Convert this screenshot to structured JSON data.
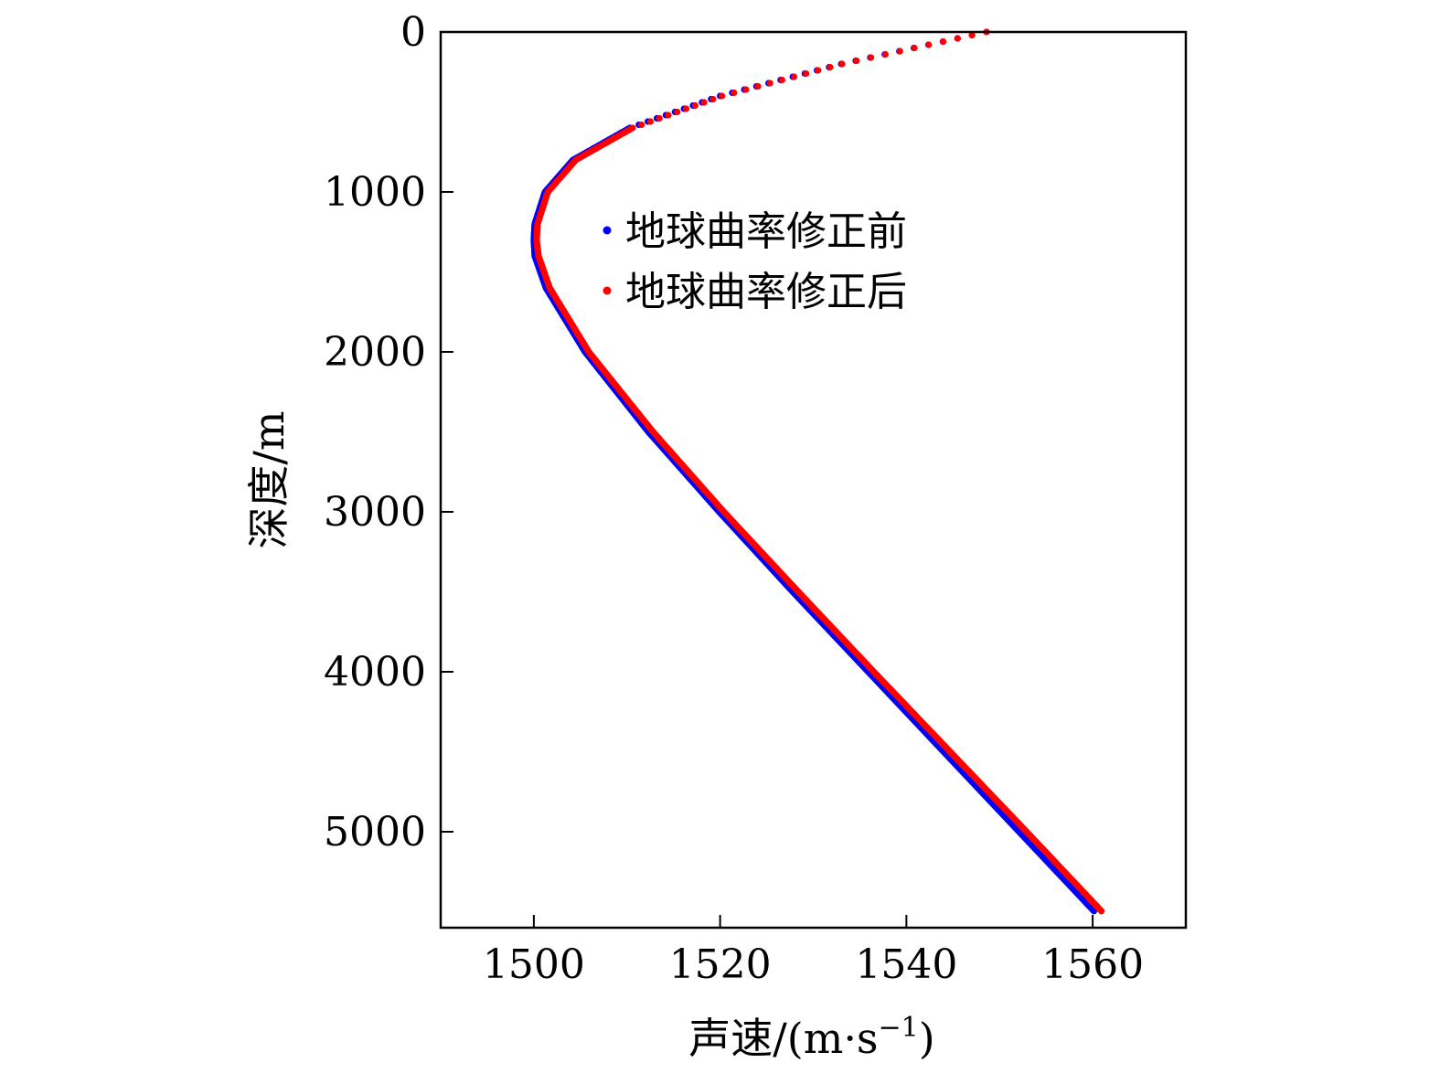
{
  "chart_data": {
    "type": "scatter",
    "xlabel": "声速/(m·s",
    "xlabel_sup": "−1",
    "xlabel_close": ")",
    "ylabel": "深度/m",
    "xlim": [
      1490,
      1570
    ],
    "ylim": [
      0,
      5600
    ],
    "y_inverted": true,
    "xticks": [
      "1500",
      "1520",
      "1540",
      "1560"
    ],
    "yticks": [
      "0",
      "1000",
      "2000",
      "3000",
      "4000",
      "5000"
    ],
    "legend_position": "upper-center",
    "grid": false,
    "series": [
      {
        "name": "地球曲率修正前",
        "color": "#0000ff",
        "marker": "dot",
        "profile": {
          "depth": [
            0,
            200,
            400,
            600,
            800,
            1000,
            1200,
            1300,
            1400,
            1600,
            2000,
            2500,
            3000,
            3500,
            4000,
            4500,
            5000,
            5500
          ],
          "speed": [
            1548.6,
            1533.0,
            1520.0,
            1510.3,
            1504.2,
            1501.2,
            1500.1,
            1500.0,
            1500.1,
            1501.3,
            1505.5,
            1512.3,
            1519.9,
            1527.8,
            1535.9,
            1544.0,
            1552.1,
            1560.2
          ]
        }
      },
      {
        "name": "地球曲率修正后",
        "color": "#ff0000",
        "marker": "dot",
        "profile": {
          "depth": [
            0,
            200,
            400,
            600,
            800,
            1000,
            1200,
            1300,
            1400,
            1600,
            2000,
            2500,
            3000,
            3500,
            4000,
            4500,
            5000,
            5500
          ],
          "speed": [
            1548.6,
            1533.1,
            1520.2,
            1510.6,
            1504.5,
            1501.5,
            1500.4,
            1500.3,
            1500.5,
            1501.7,
            1505.9,
            1512.8,
            1520.4,
            1528.4,
            1536.5,
            1544.7,
            1552.9,
            1561.0
          ]
        }
      }
    ]
  }
}
